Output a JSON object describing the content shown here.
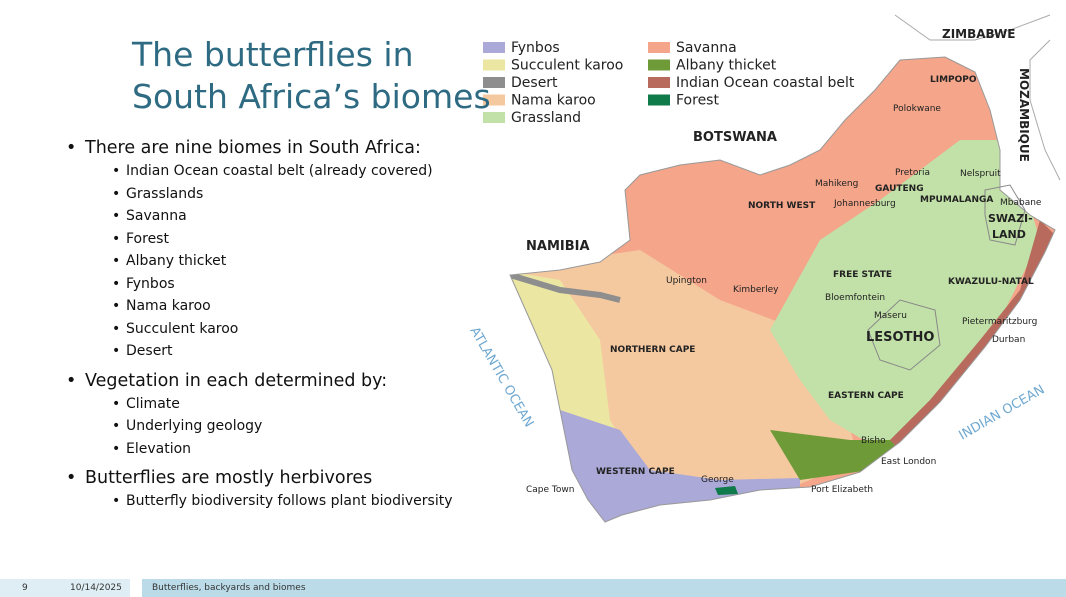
{
  "slide": {
    "title": [
      "The butterflies in",
      "South Africa’s biomes"
    ],
    "bullets": [
      {
        "text": "There are nine biomes in South Africa:",
        "sub": [
          "Indian Ocean coastal belt (already covered)",
          "Grasslands",
          "Savanna",
          "Forest",
          "Albany thicket",
          "Fynbos",
          "Nama karoo",
          "Succulent karoo",
          "Desert"
        ]
      },
      {
        "text": "Vegetation in each determined by:",
        "sub": [
          "Climate",
          "Underlying geology",
          "Elevation"
        ]
      },
      {
        "text": "Butterflies are mostly herbivores",
        "sub": [
          "Butterfly biodiversity follows plant biodiversity"
        ]
      }
    ],
    "legend": [
      {
        "name": "Fynbos",
        "color": "#aaa9d8"
      },
      {
        "name": "Succulent karoo",
        "color": "#ebe7a2"
      },
      {
        "name": "Desert",
        "color": "#8e8e8e"
      },
      {
        "name": "Nama karoo",
        "color": "#f5c9a0"
      },
      {
        "name": "Grassland",
        "color": "#c2e1a8"
      },
      {
        "name": "Savanna",
        "color": "#f4a58a"
      },
      {
        "name": "Albany thicket",
        "color": "#6e9a38"
      },
      {
        "name": "Indian Ocean coastal belt",
        "color": "#b86a5c"
      },
      {
        "name": "Forest",
        "color": "#0f7a4a"
      }
    ],
    "map_labels": [
      "ZIMBABWE",
      "MOZAMBIQUE",
      "BOTSWANA",
      "NAMIBIA",
      "LIMPOPO",
      "Polokwane",
      "NORTH WEST",
      "Mahikeng",
      "GAUTENG",
      "Pretoria",
      "Johannesburg",
      "MPUMALANGA",
      "Nelspruit",
      "Mbabane",
      "SWAZI-",
      "LAND",
      "FREE STATE",
      "Bloemfontein",
      "Maseru",
      "LESOTHO",
      "KWAZULU-NATAL",
      "Pietermaritzburg",
      "Durban",
      "Upington",
      "Kimberley",
      "NORTHERN CAPE",
      "EASTERN CAPE",
      "Bisho",
      "East London",
      "WESTERN CAPE",
      "Cape Town",
      "George",
      "Port Elizabeth",
      "ATLANTIC OCEAN",
      "INDIAN OCEAN"
    ],
    "footer": {
      "page": "9",
      "date": "10/14/2025",
      "text": "Butterflies, backyards and biomes"
    }
  }
}
